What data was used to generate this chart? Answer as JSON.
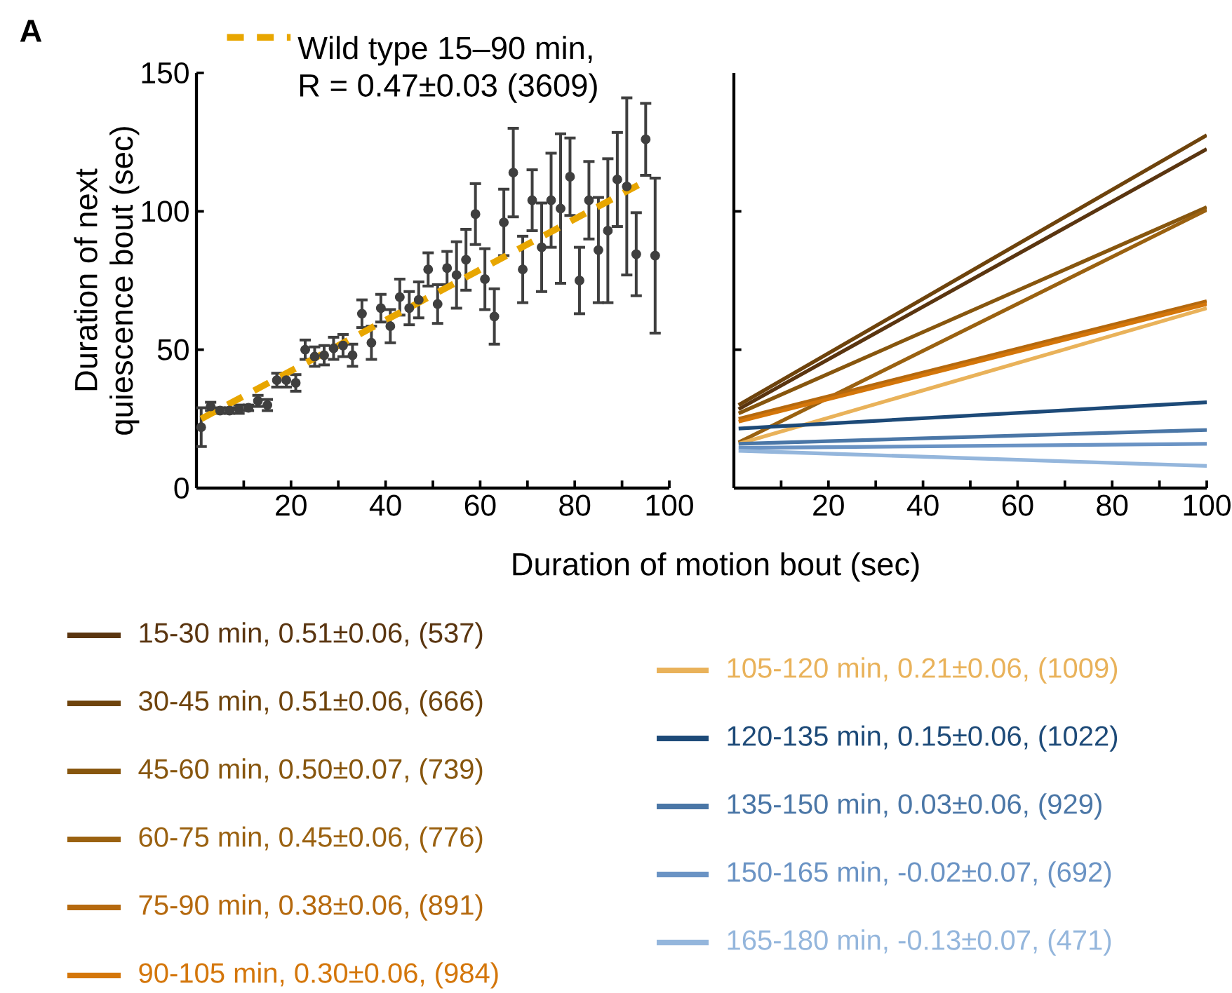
{
  "chart_data": [
    {
      "type": "scatter",
      "annotations": [
        "A"
      ],
      "xlabel": "Duration of motion bout (sec)",
      "ylabel": "Duration of next quiescence bout (sec)",
      "xlim": [
        0,
        100
      ],
      "ylim": [
        0,
        150
      ],
      "xticks": [
        {
          "value": 10,
          "label": null
        },
        20,
        {
          "value": 30,
          "label": null
        },
        40,
        {
          "value": 50,
          "label": null
        },
        60,
        {
          "value": 70,
          "label": null
        },
        80,
        {
          "value": 90,
          "label": null
        },
        100
      ],
      "yticks": [
        0,
        50,
        100,
        150
      ],
      "legend": "top left",
      "series": [
        {
          "color": "#3f3f3f",
          "marker": "circle",
          "x": [
            1,
            3,
            5,
            7,
            9,
            11,
            13,
            15,
            17,
            19,
            21,
            23,
            25,
            27,
            29,
            31,
            33,
            35,
            37,
            39,
            41,
            43,
            45,
            47,
            49,
            51,
            53,
            55,
            57,
            59,
            61,
            63,
            65,
            67,
            69,
            71,
            73,
            75,
            77,
            79,
            81,
            83,
            85,
            87,
            89,
            91,
            93,
            95,
            97
          ],
          "values": [
            22,
            29.5,
            28,
            28,
            28.5,
            29,
            31.5,
            30,
            39,
            39,
            38,
            50,
            47.5,
            48,
            50.5,
            51.5,
            48,
            63,
            52.5,
            65,
            58.5,
            69,
            65,
            68,
            79,
            66.5,
            79.5,
            77,
            82.5,
            99,
            75.5,
            62,
            96,
            114,
            79,
            104,
            87,
            104,
            101,
            112.5,
            75,
            104,
            86,
            93,
            111.5,
            109,
            84.5,
            126,
            84
          ],
          "errors": [
            7,
            1.5,
            1,
            1,
            1.5,
            1,
            2,
            2,
            2.5,
            2.5,
            3,
            3.5,
            3.5,
            3.5,
            4,
            4,
            4,
            5,
            6,
            5,
            6,
            6.5,
            6,
            6.5,
            6,
            7,
            6,
            12,
            11,
            11,
            11,
            10,
            12,
            16,
            12,
            11,
            16,
            17,
            27,
            14,
            12,
            14,
            19,
            26,
            17,
            32,
            15,
            13,
            28
          ]
        },
        {
          "type": "line",
          "name": "Wild type 15–90 min, R = 0.47±0.03 (3609)",
          "color": "#e8a600",
          "line_style": "dashed",
          "marker": "none",
          "x": [
            1,
            94
          ],
          "values": [
            25,
            110
          ]
        }
      ]
    },
    {
      "type": "line",
      "xlim": [
        0,
        100
      ],
      "ylim": [
        0,
        150
      ],
      "xticks": [
        {
          "value": 10,
          "label": null
        },
        20,
        {
          "value": 30,
          "label": null
        },
        40,
        {
          "value": 50,
          "label": null
        },
        60,
        {
          "value": 70,
          "label": null
        },
        80,
        {
          "value": 90,
          "label": null
        },
        100
      ],
      "yticks": [
        {
          "value": 50,
          "label": null
        },
        {
          "value": 100,
          "label": null
        }
      ],
      "tick_labels": "x",
      "legend": "bottom",
      "x": [
        1,
        100
      ],
      "series": [
        {
          "name": "15-30 min, 0.51±0.06, (537)",
          "color": "#5a3510",
          "values": [
            28.5,
            122.5
          ]
        },
        {
          "name": "30-45 min, 0.51±0.06, (666)",
          "color": "#6e430c",
          "values": [
            30,
            127.5
          ]
        },
        {
          "name": "45-60 min, 0.50±0.07, (739)",
          "color": "#87560e",
          "values": [
            27,
            101.5
          ]
        },
        {
          "name": "60-75 min, 0.45±0.06, (776)",
          "color": "#9a6110",
          "values": [
            16.5,
            100.5
          ]
        },
        {
          "name": "75-90 min, 0.38±0.06, (891)",
          "color": "#b5690e",
          "values": [
            25,
            67.5
          ]
        },
        {
          "name": "90-105 min, 0.30±0.06, (984)",
          "color": "#d4760a",
          "values": [
            24,
            66.5
          ]
        },
        {
          "name": "105-120 min, 0.21±0.06, (1009)",
          "color": "#e9b25a",
          "values": [
            16,
            65
          ]
        },
        {
          "name": "120-135 min, 0.15±0.06, (1022)",
          "color": "#1d4a78",
          "values": [
            21.5,
            31
          ]
        },
        {
          "name": "135-150 min, 0.03±0.06, (929)",
          "color": "#4a76a6",
          "values": [
            16,
            21
          ]
        },
        {
          "name": "150-165 min, -0.02±0.07, (692)",
          "color": "#6a93c4",
          "values": [
            14.5,
            16
          ]
        },
        {
          "name": "165-180 min, -0.13±0.07, (471)",
          "color": "#94b6dc",
          "values": [
            13.5,
            8
          ]
        }
      ]
    }
  ]
}
